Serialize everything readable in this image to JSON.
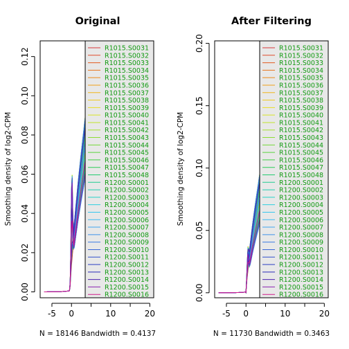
{
  "chart_data": [
    {
      "type": "line",
      "title": "Original",
      "ylabel": "Smoothing density of log2-CPM",
      "subtitle": "N = 18146   Bandwidth = 0.4137",
      "xlim": [
        -8,
        21
      ],
      "ylim": [
        -0.003,
        0.128
      ],
      "xticks": [
        -5,
        0,
        5,
        10,
        15,
        20
      ],
      "xtick_labels": [
        "-5",
        "0",
        "",
        "10",
        "",
        "20"
      ],
      "yticks": [
        0.0,
        0.02,
        0.04,
        0.06,
        0.08,
        0.1,
        0.12
      ],
      "ytick_labels": [
        "0.00",
        "0.02",
        "0.04",
        "0.06",
        "0.08",
        "0.10",
        "0.12"
      ],
      "legend_position": "right",
      "legend_from_x": 3.5,
      "curve": {
        "x_start": -7,
        "x_rise": -0.4,
        "x_end": 3.5,
        "y_min_peak": 0.058,
        "y_max_peak": 0.089,
        "early_spike_max": 0.058
      }
    },
    {
      "type": "line",
      "title": "After Filtering",
      "ylabel": "Smoothing density of log2-CPM",
      "subtitle": "N = 11730   Bandwidth = 0.3463",
      "xlim": [
        -8,
        21
      ],
      "ylim": [
        -0.004,
        0.202
      ],
      "xticks": [
        -5,
        0,
        5,
        10,
        15,
        20
      ],
      "xtick_labels": [
        "-5",
        "0",
        "",
        "10",
        "",
        "20"
      ],
      "yticks": [
        0.0,
        0.05,
        0.1,
        0.15,
        0.2
      ],
      "ytick_labels": [
        "0.00",
        "0.05",
        "0.10",
        "0.15",
        "0.20"
      ],
      "legend_position": "right",
      "legend_from_x": 3.5,
      "curve": {
        "x_start": -7,
        "x_rise": 0.0,
        "x_end": 3.5,
        "y_min_peak": 0.055,
        "y_max_peak": 0.095,
        "early_spike_max": 0.022
      }
    }
  ],
  "legend": {
    "entries": [
      "R1015.S0031",
      "R1015.S0032",
      "R1015.S0033",
      "R1015.S0034",
      "R1015.S0035",
      "R1015.S0036",
      "R1015.S0037",
      "R1015.S0038",
      "R1015.S0039",
      "R1015.S0040",
      "R1015.S0041",
      "R1015.S0042",
      "R1015.S0043",
      "R1015.S0044",
      "R1015.S0045",
      "R1015.S0046",
      "R1015.S0047",
      "R1015.S0048",
      "R1200.S0001",
      "R1200.S0002",
      "R1200.S0003",
      "R1200.S0004",
      "R1200.S0005",
      "R1200.S0006",
      "R1200.S0007",
      "R1200.S0008",
      "R1200.S0009",
      "R1200.S0010",
      "R1200.S0011",
      "R1200.S0012",
      "R1200.S0013",
      "R1200.S0014",
      "R1200.S0015",
      "R1200.S0016"
    ],
    "colors": [
      "#d9383a",
      "#e04b2a",
      "#e35a1f",
      "#e8731a",
      "#ec8a17",
      "#efa019",
      "#f0b61c",
      "#eec91f",
      "#e8dc22",
      "#d8e426",
      "#c0e42a",
      "#a6e02e",
      "#8ddc33",
      "#74d838",
      "#5ad33d",
      "#40cf45",
      "#2ccc55",
      "#22cc70",
      "#20cc90",
      "#22cfb0",
      "#26d2c8",
      "#2ccfe0",
      "#34c6ee",
      "#3cb8f2",
      "#40a6f0",
      "#3f92ea",
      "#3c7ce2",
      "#3766d8",
      "#3050cc",
      "#2a3cc2",
      "#2828b8",
      "#4a22b0",
      "#8a20b0",
      "#d01a8a"
    ],
    "background": "#e8e8e8",
    "text_color": "#129a12"
  }
}
